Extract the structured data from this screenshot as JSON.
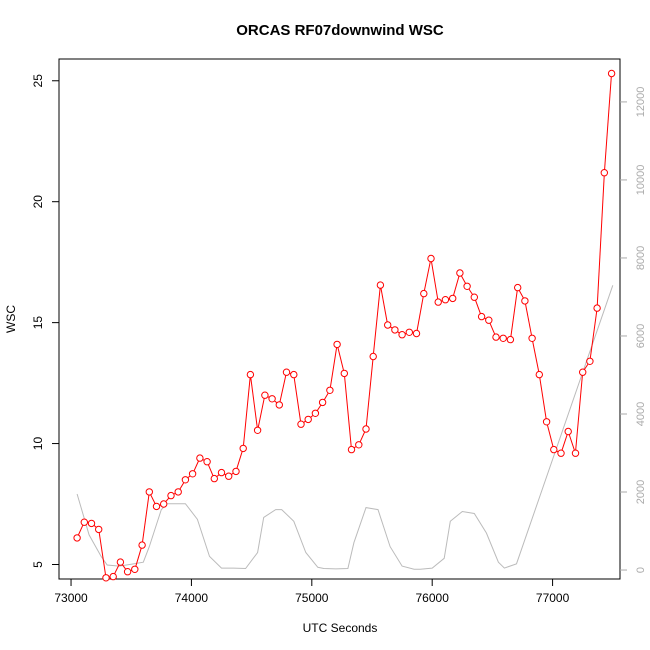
{
  "chart_data": {
    "type": "line",
    "title": "ORCAS RF07downwind WSC",
    "xlabel": "UTC Seconds",
    "ylabel": "WSC",
    "xlim": [
      72900,
      77560
    ],
    "ylim": [
      4.4,
      25.9
    ],
    "ylim_right": [
      -230,
      13100
    ],
    "x_ticks": [
      73000,
      74000,
      75000,
      76000,
      77000
    ],
    "y_ticks": [
      5,
      10,
      15,
      20,
      25
    ],
    "y2_ticks": [
      0,
      2000,
      4000,
      6000,
      8000,
      10000,
      12000
    ],
    "series": [
      {
        "color": "#ff0000",
        "marker": "open-circle",
        "axis": "left",
        "x": [
          73050,
          73110,
          73170,
          73230,
          73290,
          73350,
          73410,
          73470,
          73530,
          73590,
          73650,
          73710,
          73770,
          73830,
          73890,
          73950,
          74010,
          74070,
          74130,
          74190,
          74250,
          74310,
          74370,
          74430,
          74490,
          74550,
          74610,
          74670,
          74730,
          74790,
          74850,
          74910,
          74970,
          75030,
          75090,
          75150,
          75210,
          75270,
          75330,
          75390,
          75450,
          75510,
          75570,
          75630,
          75690,
          75750,
          75810,
          75870,
          75930,
          75990,
          76050,
          76110,
          76170,
          76230,
          76290,
          76350,
          76410,
          76470,
          76530,
          76590,
          76650,
          76710,
          76770,
          76830,
          76890,
          76950,
          77010,
          77070,
          77130,
          77190,
          77250,
          77310,
          77370,
          77430,
          77490
        ],
        "y": [
          6.1,
          6.75,
          6.7,
          6.45,
          4.45,
          4.5,
          5.1,
          4.7,
          4.8,
          5.8,
          8.0,
          7.4,
          7.5,
          7.85,
          8.0,
          8.5,
          8.75,
          9.4,
          9.25,
          8.55,
          8.8,
          8.65,
          8.85,
          9.8,
          12.85,
          10.55,
          12.0,
          11.85,
          11.6,
          12.95,
          12.85,
          10.8,
          11.0,
          11.25,
          11.7,
          12.2,
          14.1,
          12.9,
          9.75,
          9.95,
          10.6,
          13.6,
          16.55,
          14.9,
          14.7,
          14.5,
          14.6,
          14.55,
          16.2,
          17.65,
          15.85,
          15.95,
          16.0,
          17.05,
          16.5,
          16.05,
          15.25,
          15.1,
          14.4,
          14.35,
          14.3,
          16.45,
          15.9,
          14.35,
          12.85,
          10.9,
          9.75,
          9.6,
          10.5,
          9.6,
          12.95,
          13.4,
          15.6,
          21.2,
          25.3
        ]
      },
      {
        "color": "#bbbbbb",
        "marker": "none",
        "axis": "right",
        "x": [
          73050,
          73150,
          73250,
          73300,
          73400,
          73500,
          73600,
          73650,
          73750,
          73800,
          73900,
          73950,
          74050,
          74150,
          74250,
          74350,
          74450,
          74550,
          74600,
          74700,
          74750,
          74850,
          74950,
          75050,
          75100,
          75200,
          75300,
          75350,
          75450,
          75550,
          75650,
          75750,
          75850,
          75900,
          76000,
          76100,
          76150,
          76250,
          76350,
          76450,
          76550,
          76600,
          76700,
          77500
        ],
        "y": [
          1950,
          900,
          350,
          130,
          100,
          150,
          200,
          600,
          1550,
          1700,
          1700,
          1700,
          1300,
          350,
          50,
          50,
          40,
          450,
          1350,
          1550,
          1550,
          1250,
          450,
          70,
          40,
          30,
          40,
          700,
          1600,
          1550,
          600,
          100,
          20,
          20,
          50,
          300,
          1250,
          1500,
          1450,
          950,
          200,
          50,
          160,
          7300
        ]
      }
    ]
  }
}
